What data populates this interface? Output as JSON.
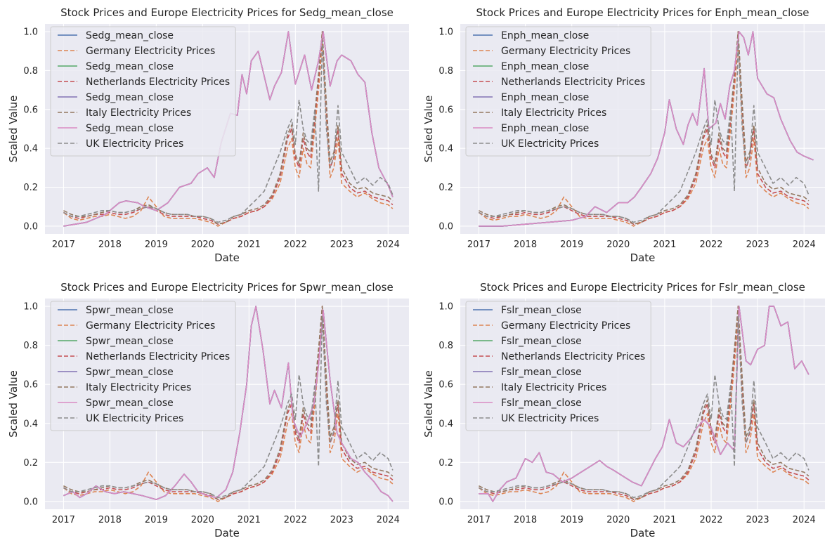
{
  "chart_data": [
    {
      "type": "line",
      "title": "Stock Prices and Europe Electricity Prices for Sedg_mean_close",
      "xlabel": "Date",
      "ylabel": "Scaled Value",
      "xlim": [
        2016.6,
        2024.45
      ],
      "ylim": [
        -0.04,
        1.04
      ],
      "xticks": [
        "2017",
        "2018",
        "2019",
        "2020",
        "2021",
        "2022",
        "2023",
        "2024"
      ],
      "yticks": [
        "0.0",
        "0.2",
        "0.4",
        "0.6",
        "0.8",
        "1.0"
      ],
      "grid": true,
      "legend": "upper left",
      "series": [
        {
          "name": "Sedg_mean_close",
          "color": "#4c72b0",
          "dash": "solid",
          "ref": "stock"
        },
        {
          "name": "Germany Electricity Prices",
          "color": "#dd8452",
          "dash": "dashed",
          "ref": "germany"
        },
        {
          "name": "Sedg_mean_close",
          "color": "#55a868",
          "dash": "solid",
          "ref": "stock"
        },
        {
          "name": "Netherlands Electricity Prices",
          "color": "#c44e52",
          "dash": "dashed",
          "ref": "netherlands"
        },
        {
          "name": "Sedg_mean_close",
          "color": "#8172b3",
          "dash": "solid",
          "ref": "stock"
        },
        {
          "name": "Italy Electricity Prices",
          "color": "#937860",
          "dash": "dashed",
          "ref": "italy"
        },
        {
          "name": "Sedg_mean_close",
          "color": "#da8bc3",
          "dash": "solid",
          "ref": "stock"
        },
        {
          "name": "UK Electricity Prices",
          "color": "#8c8c8c",
          "dash": "dashed",
          "ref": "uk"
        }
      ],
      "stock": {
        "x": [
          2017.0,
          2017.5,
          2017.9,
          2018.2,
          2018.35,
          2018.6,
          2018.75,
          2019.0,
          2019.25,
          2019.5,
          2019.75,
          2019.9,
          2020.1,
          2020.25,
          2020.4,
          2020.6,
          2020.75,
          2020.85,
          2020.95,
          2021.05,
          2021.2,
          2021.35,
          2021.45,
          2021.55,
          2021.7,
          2021.85,
          2022.0,
          2022.2,
          2022.35,
          2022.5,
          2022.6,
          2022.75,
          2022.9,
          2023.0,
          2023.2,
          2023.35,
          2023.5,
          2023.65,
          2023.8,
          2024.0,
          2024.1
        ],
        "y": [
          0.0,
          0.02,
          0.06,
          0.12,
          0.13,
          0.12,
          0.1,
          0.08,
          0.12,
          0.2,
          0.22,
          0.27,
          0.3,
          0.25,
          0.43,
          0.58,
          0.57,
          0.78,
          0.68,
          0.85,
          0.9,
          0.75,
          0.65,
          0.72,
          0.79,
          1.0,
          0.73,
          0.88,
          0.7,
          0.85,
          1.0,
          0.72,
          0.85,
          0.88,
          0.85,
          0.78,
          0.74,
          0.48,
          0.3,
          0.21,
          0.15
        ]
      }
    },
    {
      "type": "line",
      "title": "Stock Prices and Europe Electricity Prices for Enph_mean_close",
      "xlabel": "Date",
      "ylabel": "Scaled Value",
      "xlim": [
        2016.6,
        2024.45
      ],
      "ylim": [
        -0.04,
        1.04
      ],
      "xticks": [
        "2017",
        "2018",
        "2019",
        "2020",
        "2021",
        "2022",
        "2023",
        "2024"
      ],
      "yticks": [
        "0.0",
        "0.2",
        "0.4",
        "0.6",
        "0.8",
        "1.0"
      ],
      "grid": true,
      "legend": "upper left",
      "series": [
        {
          "name": "Enph_mean_close",
          "color": "#4c72b0",
          "dash": "solid",
          "ref": "stock"
        },
        {
          "name": "Germany Electricity Prices",
          "color": "#dd8452",
          "dash": "dashed",
          "ref": "germany"
        },
        {
          "name": "Enph_mean_close",
          "color": "#55a868",
          "dash": "solid",
          "ref": "stock"
        },
        {
          "name": "Netherlands Electricity Prices",
          "color": "#c44e52",
          "dash": "dashed",
          "ref": "netherlands"
        },
        {
          "name": "Enph_mean_close",
          "color": "#8172b3",
          "dash": "solid",
          "ref": "stock"
        },
        {
          "name": "Italy Electricity Prices",
          "color": "#937860",
          "dash": "dashed",
          "ref": "italy"
        },
        {
          "name": "Enph_mean_close",
          "color": "#da8bc3",
          "dash": "solid",
          "ref": "stock"
        },
        {
          "name": "UK Electricity Prices",
          "color": "#8c8c8c",
          "dash": "dashed",
          "ref": "uk"
        }
      ],
      "stock": {
        "x": [
          2017.0,
          2017.5,
          2018.0,
          2018.5,
          2019.0,
          2019.3,
          2019.5,
          2019.75,
          2020.0,
          2020.2,
          2020.35,
          2020.5,
          2020.7,
          2020.85,
          2021.0,
          2021.1,
          2021.25,
          2021.4,
          2021.5,
          2021.6,
          2021.7,
          2021.85,
          2021.95,
          2022.1,
          2022.2,
          2022.3,
          2022.4,
          2022.5,
          2022.6,
          2022.7,
          2022.8,
          2022.9,
          2023.0,
          2023.2,
          2023.35,
          2023.5,
          2023.7,
          2023.85,
          2024.0,
          2024.2
        ],
        "y": [
          0.0,
          0.0,
          0.01,
          0.02,
          0.03,
          0.05,
          0.1,
          0.07,
          0.12,
          0.12,
          0.15,
          0.2,
          0.27,
          0.35,
          0.48,
          0.65,
          0.5,
          0.42,
          0.52,
          0.58,
          0.52,
          0.81,
          0.5,
          0.53,
          0.63,
          0.55,
          0.72,
          0.8,
          1.0,
          0.97,
          0.88,
          1.0,
          0.76,
          0.68,
          0.66,
          0.55,
          0.44,
          0.38,
          0.36,
          0.34
        ]
      }
    },
    {
      "type": "line",
      "title": "Stock Prices and Europe Electricity Prices for Spwr_mean_close",
      "xlabel": "Date",
      "ylabel": "Scaled Value",
      "xlim": [
        2016.6,
        2024.45
      ],
      "ylim": [
        -0.04,
        1.04
      ],
      "xticks": [
        "2017",
        "2018",
        "2019",
        "2020",
        "2021",
        "2022",
        "2023",
        "2024"
      ],
      "yticks": [
        "0.0",
        "0.2",
        "0.4",
        "0.6",
        "0.8",
        "1.0"
      ],
      "grid": true,
      "legend": "upper left",
      "series": [
        {
          "name": "Spwr_mean_close",
          "color": "#4c72b0",
          "dash": "solid",
          "ref": "stock"
        },
        {
          "name": "Germany Electricity Prices",
          "color": "#dd8452",
          "dash": "dashed",
          "ref": "germany"
        },
        {
          "name": "Spwr_mean_close",
          "color": "#55a868",
          "dash": "solid",
          "ref": "stock"
        },
        {
          "name": "Netherlands Electricity Prices",
          "color": "#c44e52",
          "dash": "dashed",
          "ref": "netherlands"
        },
        {
          "name": "Spwr_mean_close",
          "color": "#8172b3",
          "dash": "solid",
          "ref": "stock"
        },
        {
          "name": "Italy Electricity Prices",
          "color": "#937860",
          "dash": "dashed",
          "ref": "italy"
        },
        {
          "name": "Spwr_mean_close",
          "color": "#da8bc3",
          "dash": "solid",
          "ref": "stock"
        },
        {
          "name": "UK Electricity Prices",
          "color": "#8c8c8c",
          "dash": "dashed",
          "ref": "uk"
        }
      ],
      "stock": {
        "x": [
          2017.0,
          2017.2,
          2017.35,
          2017.5,
          2017.7,
          2017.9,
          2018.1,
          2018.3,
          2018.5,
          2018.7,
          2019.0,
          2019.2,
          2019.4,
          2019.6,
          2019.75,
          2019.9,
          2020.1,
          2020.3,
          2020.5,
          2020.65,
          2020.8,
          2020.95,
          2021.05,
          2021.15,
          2021.3,
          2021.45,
          2021.55,
          2021.7,
          2021.85,
          2021.95,
          2022.1,
          2022.25,
          2022.4,
          2022.5,
          2022.6,
          2022.75,
          2022.9,
          2023.0,
          2023.2,
          2023.35,
          2023.5,
          2023.7,
          2023.85,
          2024.0,
          2024.1
        ],
        "y": [
          0.03,
          0.05,
          0.02,
          0.04,
          0.08,
          0.05,
          0.04,
          0.05,
          0.04,
          0.03,
          0.01,
          0.03,
          0.08,
          0.14,
          0.1,
          0.05,
          0.03,
          0.02,
          0.06,
          0.15,
          0.35,
          0.6,
          0.9,
          1.0,
          0.78,
          0.5,
          0.57,
          0.48,
          0.71,
          0.42,
          0.33,
          0.4,
          0.5,
          0.7,
          0.98,
          0.62,
          0.35,
          0.3,
          0.22,
          0.2,
          0.15,
          0.1,
          0.05,
          0.03,
          0.0
        ]
      }
    },
    {
      "type": "line",
      "title": "Stock Prices and Europe Electricity Prices for Fslr_mean_close",
      "xlabel": "Date",
      "ylabel": "Scaled Value",
      "xlim": [
        2016.6,
        2024.45
      ],
      "ylim": [
        -0.04,
        1.04
      ],
      "xticks": [
        "2017",
        "2018",
        "2019",
        "2020",
        "2021",
        "2022",
        "2023",
        "2024"
      ],
      "yticks": [
        "0.0",
        "0.2",
        "0.4",
        "0.6",
        "0.8",
        "1.0"
      ],
      "grid": true,
      "legend": "upper left",
      "series": [
        {
          "name": "Fslr_mean_close",
          "color": "#4c72b0",
          "dash": "solid",
          "ref": "stock"
        },
        {
          "name": "Germany Electricity Prices",
          "color": "#dd8452",
          "dash": "dashed",
          "ref": "germany"
        },
        {
          "name": "Fslr_mean_close",
          "color": "#55a868",
          "dash": "solid",
          "ref": "stock"
        },
        {
          "name": "Netherlands Electricity Prices",
          "color": "#c44e52",
          "dash": "dashed",
          "ref": "netherlands"
        },
        {
          "name": "Fslr_mean_close",
          "color": "#8172b3",
          "dash": "solid",
          "ref": "stock"
        },
        {
          "name": "Italy Electricity Prices",
          "color": "#937860",
          "dash": "dashed",
          "ref": "italy"
        },
        {
          "name": "Fslr_mean_close",
          "color": "#da8bc3",
          "dash": "solid",
          "ref": "stock"
        },
        {
          "name": "UK Electricity Prices",
          "color": "#8c8c8c",
          "dash": "dashed",
          "ref": "uk"
        }
      ],
      "stock": {
        "x": [
          2017.0,
          2017.2,
          2017.3,
          2017.45,
          2017.6,
          2017.8,
          2018.0,
          2018.15,
          2018.3,
          2018.45,
          2018.6,
          2018.8,
          2019.0,
          2019.2,
          2019.4,
          2019.6,
          2019.75,
          2019.9,
          2020.1,
          2020.3,
          2020.5,
          2020.65,
          2020.8,
          2020.95,
          2021.1,
          2021.25,
          2021.4,
          2021.55,
          2021.7,
          2021.85,
          2022.0,
          2022.2,
          2022.35,
          2022.5,
          2022.6,
          2022.75,
          2022.85,
          2023.0,
          2023.15,
          2023.25,
          2023.35,
          2023.5,
          2023.65,
          2023.8,
          2023.95,
          2024.1
        ],
        "y": [
          0.04,
          0.04,
          0.0,
          0.06,
          0.1,
          0.12,
          0.22,
          0.2,
          0.25,
          0.15,
          0.14,
          0.1,
          0.12,
          0.15,
          0.18,
          0.21,
          0.18,
          0.16,
          0.13,
          0.1,
          0.08,
          0.15,
          0.22,
          0.28,
          0.42,
          0.3,
          0.28,
          0.32,
          0.38,
          0.42,
          0.38,
          0.24,
          0.3,
          0.26,
          1.0,
          0.72,
          0.7,
          0.78,
          0.8,
          1.0,
          1.0,
          0.9,
          0.92,
          0.68,
          0.72,
          0.65
        ]
      }
    }
  ],
  "electricity": {
    "x": [
      2017.0,
      2017.17,
      2017.33,
      2017.5,
      2017.67,
      2017.83,
      2018.0,
      2018.17,
      2018.33,
      2018.5,
      2018.67,
      2018.83,
      2019.0,
      2019.17,
      2019.33,
      2019.5,
      2019.67,
      2019.83,
      2020.0,
      2020.17,
      2020.33,
      2020.5,
      2020.67,
      2020.83,
      2021.0,
      2021.17,
      2021.33,
      2021.5,
      2021.67,
      2021.83,
      2021.92,
      2022.0,
      2022.08,
      2022.17,
      2022.25,
      2022.33,
      2022.42,
      2022.5,
      2022.58,
      2022.67,
      2022.75,
      2022.83,
      2022.92,
      2023.0,
      2023.17,
      2023.33,
      2023.5,
      2023.67,
      2023.83,
      2024.0,
      2024.1
    ],
    "germany": [
      0.07,
      0.04,
      0.03,
      0.04,
      0.05,
      0.05,
      0.06,
      0.05,
      0.04,
      0.05,
      0.08,
      0.15,
      0.1,
      0.05,
      0.04,
      0.04,
      0.04,
      0.04,
      0.03,
      0.02,
      0.0,
      0.02,
      0.04,
      0.05,
      0.07,
      0.08,
      0.1,
      0.14,
      0.22,
      0.4,
      0.45,
      0.3,
      0.25,
      0.4,
      0.32,
      0.3,
      0.5,
      0.7,
      0.95,
      0.55,
      0.25,
      0.3,
      0.45,
      0.22,
      0.18,
      0.15,
      0.17,
      0.14,
      0.12,
      0.11,
      0.09
    ],
    "netherlands": [
      0.07,
      0.05,
      0.04,
      0.05,
      0.06,
      0.06,
      0.07,
      0.06,
      0.06,
      0.07,
      0.09,
      0.1,
      0.08,
      0.06,
      0.05,
      0.05,
      0.05,
      0.05,
      0.04,
      0.03,
      0.01,
      0.02,
      0.04,
      0.05,
      0.07,
      0.08,
      0.1,
      0.15,
      0.25,
      0.45,
      0.5,
      0.35,
      0.3,
      0.45,
      0.38,
      0.35,
      0.55,
      0.75,
      1.0,
      0.6,
      0.3,
      0.35,
      0.5,
      0.27,
      0.2,
      0.17,
      0.18,
      0.15,
      0.14,
      0.13,
      0.11
    ],
    "italy": [
      0.08,
      0.06,
      0.05,
      0.05,
      0.06,
      0.07,
      0.08,
      0.07,
      0.07,
      0.08,
      0.1,
      0.11,
      0.09,
      0.07,
      0.06,
      0.06,
      0.06,
      0.05,
      0.05,
      0.04,
      0.01,
      0.02,
      0.05,
      0.06,
      0.08,
      0.09,
      0.11,
      0.16,
      0.27,
      0.47,
      0.52,
      0.37,
      0.32,
      0.48,
      0.4,
      0.38,
      0.58,
      0.78,
      1.0,
      0.63,
      0.33,
      0.38,
      0.52,
      0.3,
      0.22,
      0.19,
      0.2,
      0.17,
      0.16,
      0.15,
      0.13
    ],
    "uk": [
      0.07,
      0.05,
      0.05,
      0.06,
      0.07,
      0.08,
      0.08,
      0.07,
      0.07,
      0.08,
      0.09,
      0.1,
      0.09,
      0.07,
      0.06,
      0.06,
      0.06,
      0.05,
      0.05,
      0.04,
      0.02,
      0.03,
      0.05,
      0.06,
      0.1,
      0.14,
      0.18,
      0.28,
      0.38,
      0.5,
      0.55,
      0.42,
      0.65,
      0.5,
      0.44,
      0.42,
      0.6,
      0.18,
      0.95,
      0.5,
      0.3,
      0.36,
      0.62,
      0.38,
      0.3,
      0.22,
      0.25,
      0.21,
      0.25,
      0.22,
      0.16
    ]
  }
}
